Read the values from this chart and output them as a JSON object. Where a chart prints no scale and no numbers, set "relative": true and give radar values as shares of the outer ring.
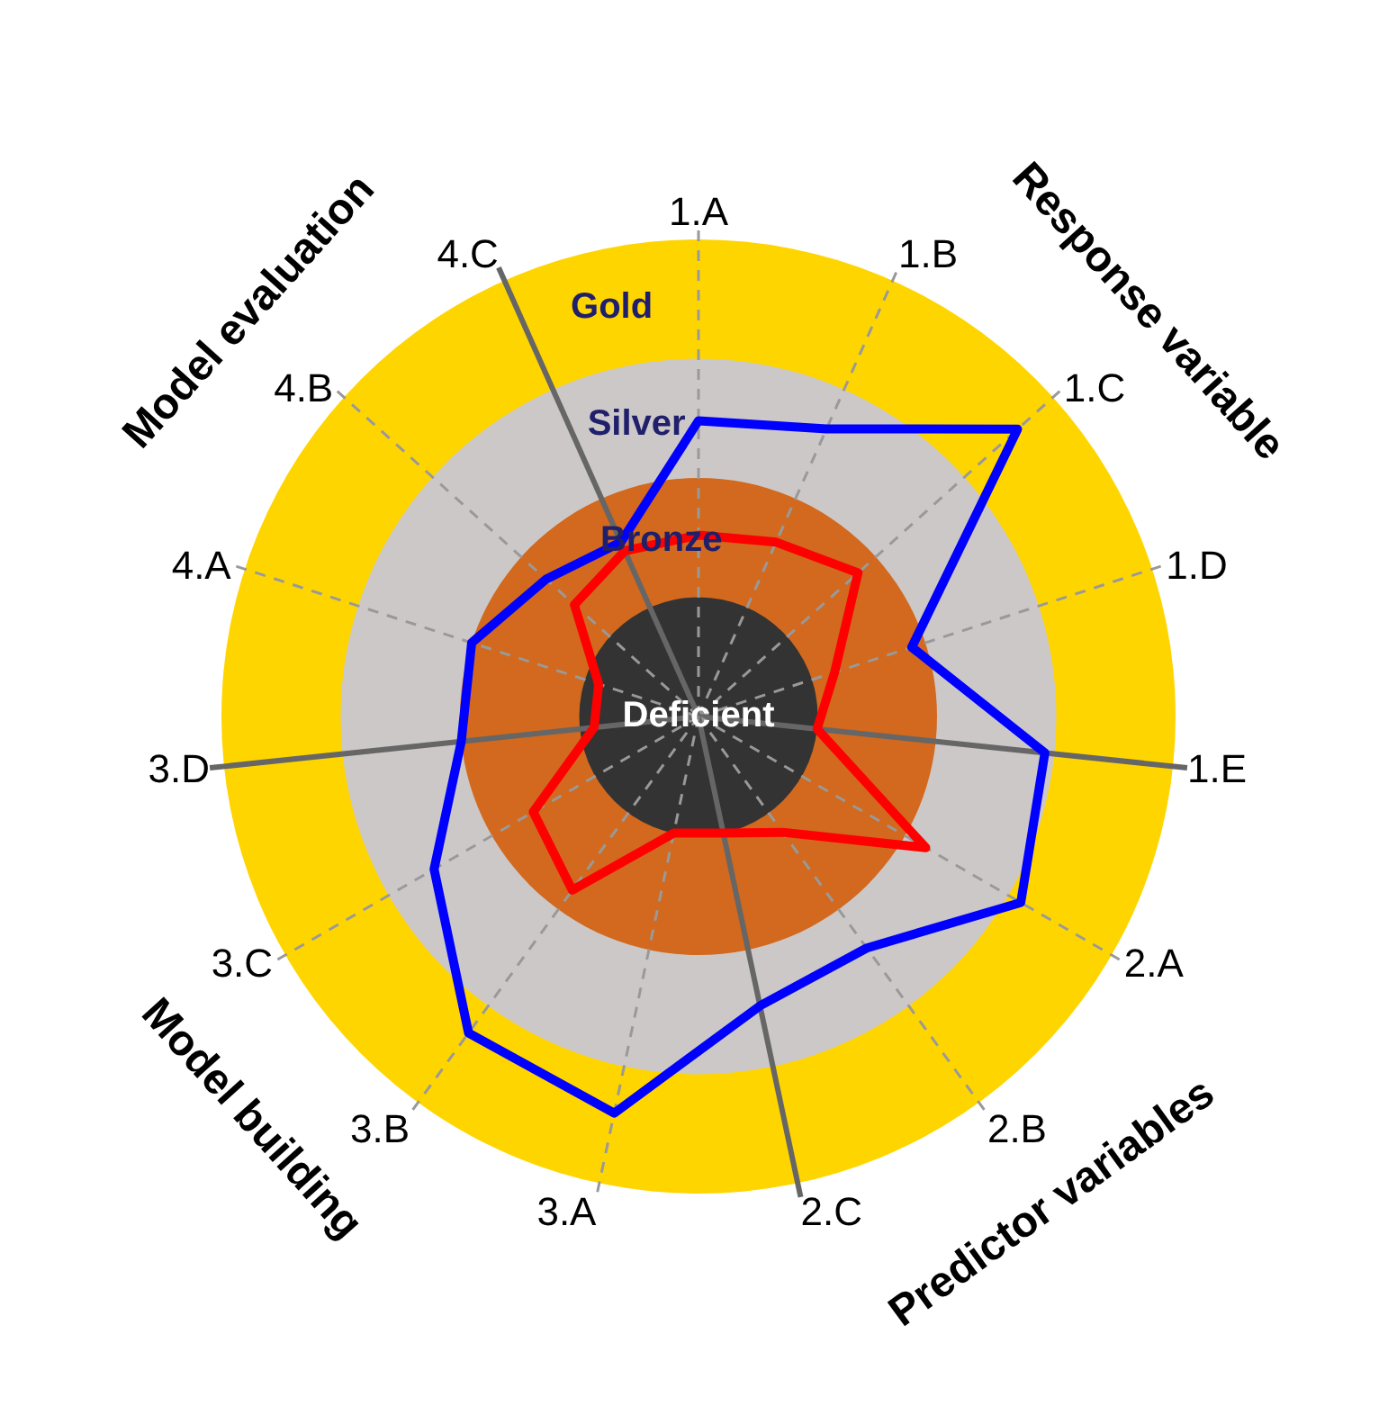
{
  "chart_data": {
    "type": "radar",
    "relative": true,
    "categories": [
      "1.A",
      "1.B",
      "1.C",
      "1.D",
      "1.E",
      "2.A",
      "2.B",
      "2.C",
      "3.A",
      "3.B",
      "3.C",
      "3.D",
      "4.A",
      "4.B",
      "4.C"
    ],
    "series": [
      {
        "color": "#0000ff",
        "values": [
          0.62,
          0.66,
          0.9,
          0.47,
          0.73,
          0.78,
          0.6,
          0.62,
          0.85,
          0.82,
          0.64,
          0.5,
          0.5,
          0.43,
          0.4
        ]
      },
      {
        "color": "#ff0000",
        "values": [
          0.38,
          0.4,
          0.45,
          0.3,
          0.25,
          0.55,
          0.3,
          0.25,
          0.25,
          0.45,
          0.4,
          0.22,
          0.22,
          0.35,
          0.38
        ]
      }
    ],
    "bands": [
      {
        "axis": "y",
        "label": "Gold",
        "color": "#ffd500"
      },
      {
        "axis": "y",
        "label": "Silver",
        "color": "#cdc8c8"
      },
      {
        "axis": "y",
        "label": "Bronze",
        "color": "#d2691e"
      },
      {
        "axis": "y",
        "label": "Deficient",
        "color": "#333333"
      }
    ],
    "annotations": [
      "Response variable",
      "Predictor variables",
      "Model building",
      "Model evaluation"
    ],
    "grid": true
  }
}
